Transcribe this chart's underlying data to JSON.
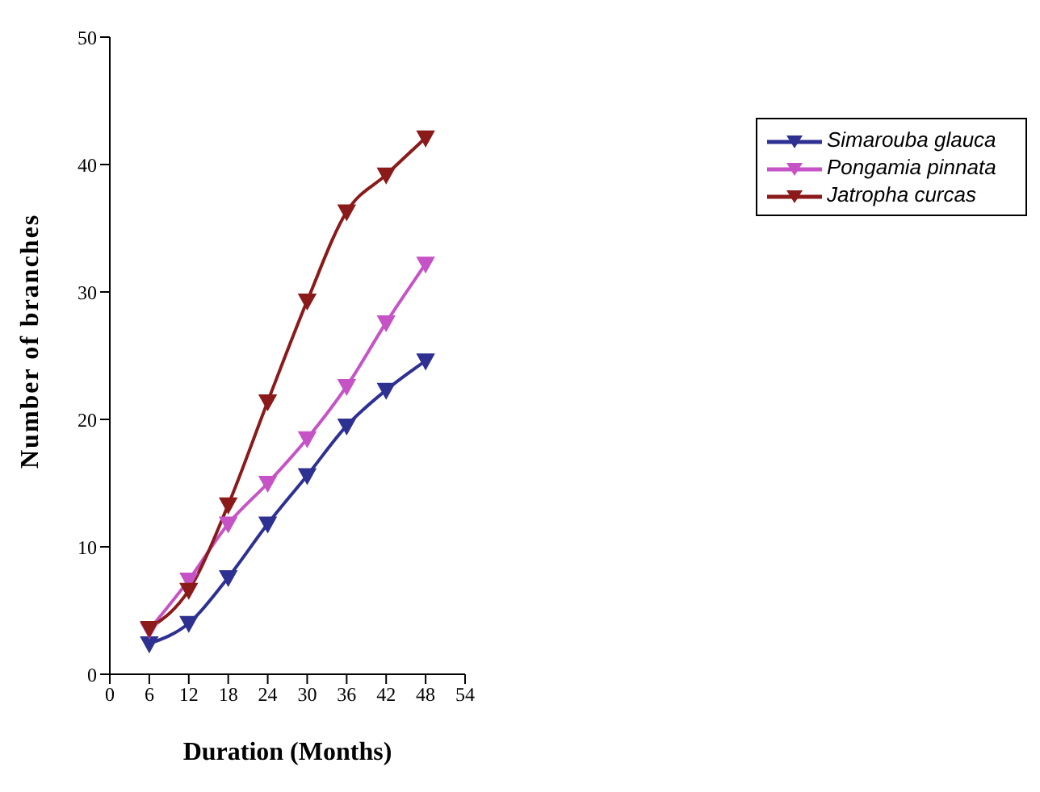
{
  "chart_data": {
    "type": "line",
    "xlabel": "Duration (Months)",
    "ylabel": "Number of branches",
    "x": [
      6,
      12,
      18,
      24,
      30,
      36,
      42,
      48
    ],
    "series": [
      {
        "name": "Simarouba glauca",
        "color": "#2e3192",
        "values": [
          2.4,
          4.0,
          7.6,
          11.8,
          15.6,
          19.5,
          22.3,
          24.6
        ]
      },
      {
        "name": "Pongamia pinnata",
        "color": "#c653c6",
        "values": [
          3.5,
          7.4,
          11.8,
          15.0,
          18.5,
          22.6,
          27.6,
          32.2
        ]
      },
      {
        "name": "Jatropha curcas",
        "color": "#8b1a1a",
        "values": [
          3.6,
          6.6,
          13.3,
          21.4,
          29.3,
          36.3,
          39.2,
          42.1
        ]
      }
    ],
    "xlim": [
      0,
      54
    ],
    "xticks": [
      0,
      6,
      12,
      18,
      24,
      30,
      36,
      42,
      48,
      54
    ],
    "ylim": [
      0,
      50
    ],
    "yticks": [
      0,
      10,
      20,
      30,
      40,
      50
    ],
    "grid": false,
    "legend": "right",
    "marker": "triangle",
    "line_style": "solid"
  }
}
